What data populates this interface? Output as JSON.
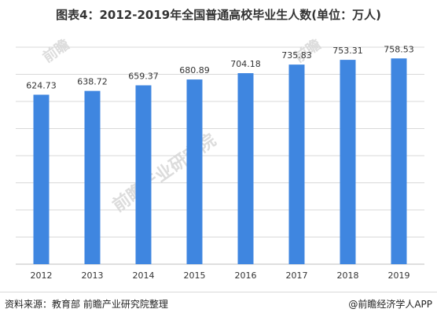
{
  "title": "图表4：2012-2019年全国普通高校毕业生人数(单位：万人)",
  "source": "资料来源：教育部 前瞻产业研究院整理",
  "brand": "@前瞻经济学人APP",
  "watermarks": [
    "前瞻产业研究院",
    "前瞻",
    "前瞻"
  ],
  "colors": {
    "bar": "#3f86e0",
    "grid": "#d9d9d9",
    "axis": "#bfbfbf",
    "label": "#333333"
  },
  "chart_data": {
    "type": "bar",
    "categories": [
      "2012",
      "2013",
      "2014",
      "2015",
      "2016",
      "2017",
      "2018",
      "2019"
    ],
    "values": [
      624.73,
      638.72,
      659.37,
      680.89,
      704.18,
      735.83,
      753.31,
      758.53
    ],
    "value_labels": [
      "624.73",
      "638.72",
      "659.37",
      "680.89",
      "704.18",
      "735.83",
      "753.31",
      "758.53"
    ],
    "ylim": [
      0,
      800
    ],
    "grid": true,
    "legend": "none"
  }
}
